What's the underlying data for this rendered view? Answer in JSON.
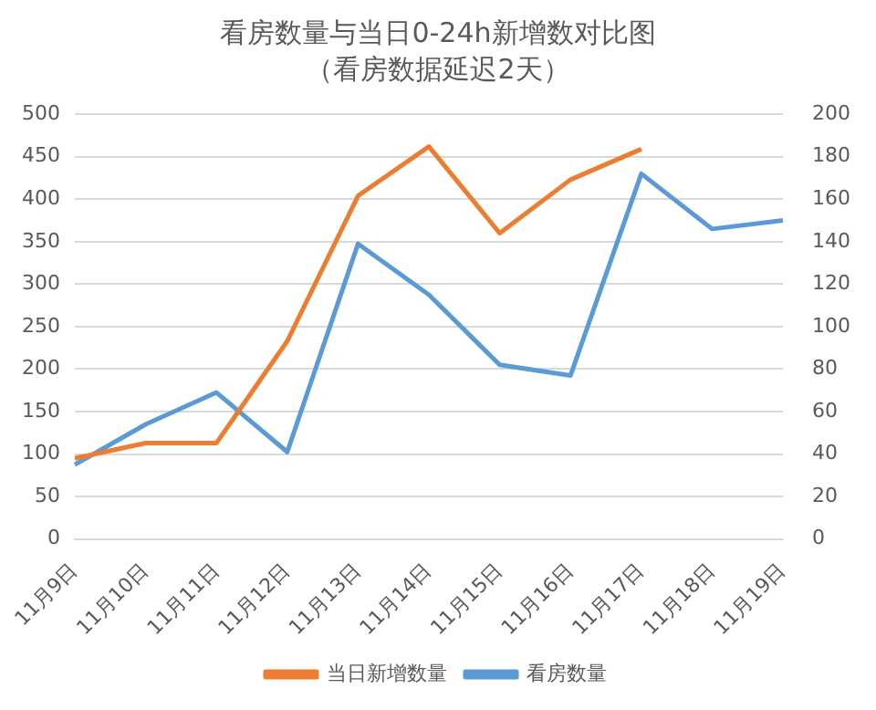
{
  "chart_data": {
    "type": "line",
    "title": "看房数量与当日0-24h新增数对比图",
    "subtitle": "（看房数据延迟2天）",
    "categories": [
      "11月9日",
      "11月10日",
      "11月11日",
      "11月12日",
      "11月13日",
      "11月14日",
      "11月15日",
      "11月16日",
      "11月17日",
      "11月18日",
      "11月19日"
    ],
    "series": [
      {
        "name": "当日新增数量",
        "color": "#ed7d31",
        "values": [
          95,
          113,
          113,
          233,
          404,
          462,
          360,
          423,
          459,
          null,
          null
        ]
      },
      {
        "name": "看房数量",
        "color": "#5b9bd5",
        "axis": "y2",
        "values": [
          35,
          54,
          69,
          41,
          139,
          115,
          82,
          77,
          172,
          146,
          150
        ]
      }
    ],
    "ylim": [
      0,
      500
    ],
    "yticks": [
      0,
      50,
      100,
      150,
      200,
      250,
      300,
      350,
      400,
      450,
      500
    ],
    "y2lim": [
      0,
      200
    ],
    "y2ticks": [
      0,
      20,
      40,
      60,
      80,
      100,
      120,
      140,
      160,
      180,
      200
    ],
    "grid": "y",
    "legend": "bottom",
    "marker": "none",
    "line_style": "solid"
  }
}
